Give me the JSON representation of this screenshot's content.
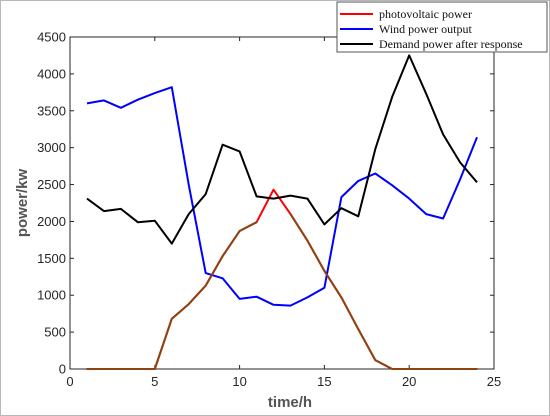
{
  "chart_data": {
    "type": "line",
    "title": "",
    "xlabel": "time/h",
    "ylabel": "power/kw",
    "xlim": [
      0,
      25
    ],
    "ylim": [
      0,
      4500
    ],
    "xticks": [
      0,
      5,
      10,
      15,
      20,
      25
    ],
    "yticks": [
      0,
      500,
      1000,
      1500,
      2000,
      2500,
      3000,
      3500,
      4000,
      4500
    ],
    "grid": false,
    "legend_position": "top-right",
    "x": [
      1,
      2,
      3,
      4,
      5,
      6,
      7,
      8,
      9,
      10,
      11,
      12,
      13,
      14,
      15,
      16,
      17,
      18,
      19,
      20,
      21,
      22,
      23,
      24
    ],
    "series": [
      {
        "name": "photovoltaic power",
        "color": "#ff0000",
        "values": [
          0,
          0,
          0,
          0,
          0,
          680,
          880,
          1130,
          1530,
          1870,
          1990,
          2430,
          2100,
          1740,
          1330,
          970,
          540,
          120,
          0,
          0,
          0,
          0,
          0,
          0
        ]
      },
      {
        "name": "Wind power output",
        "color": "#0000ff",
        "values": [
          3600,
          3640,
          3540,
          3650,
          3740,
          3820,
          2500,
          1300,
          1230,
          950,
          980,
          870,
          860,
          970,
          1100,
          2330,
          2550,
          2650,
          2490,
          2310,
          2100,
          2040,
          2570,
          3140
        ]
      },
      {
        "name": "Demand power after response",
        "color": "#000000",
        "values": [
          2310,
          2140,
          2170,
          1990,
          2010,
          1700,
          2100,
          2370,
          3040,
          2950,
          2340,
          2310,
          2350,
          2310,
          1960,
          2180,
          2070,
          2980,
          3690,
          4250,
          3730,
          3180,
          2800,
          2530
        ]
      }
    ],
    "overlap_color": "#8b4513"
  }
}
